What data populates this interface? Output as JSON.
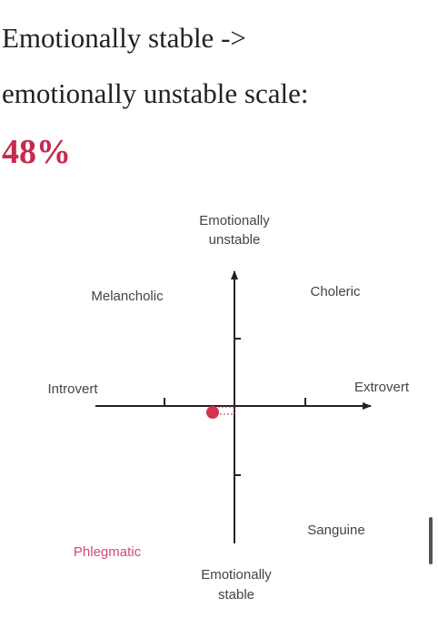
{
  "heading": {
    "lines": [
      "Emotionally stable ->",
      "emotionally unstable scale:"
    ],
    "result": "48%"
  },
  "diagram": {
    "top_label": [
      "Emotionally",
      "unstable"
    ],
    "bottom_label": [
      "Emotionally",
      "stable"
    ],
    "left_label": "Introvert",
    "right_label": "Extrovert",
    "quadrants": {
      "top_left": "Melancholic",
      "top_right": "Choleric",
      "bottom_left": "Phlegmatic",
      "bottom_right": "Sanguine"
    }
  }
}
